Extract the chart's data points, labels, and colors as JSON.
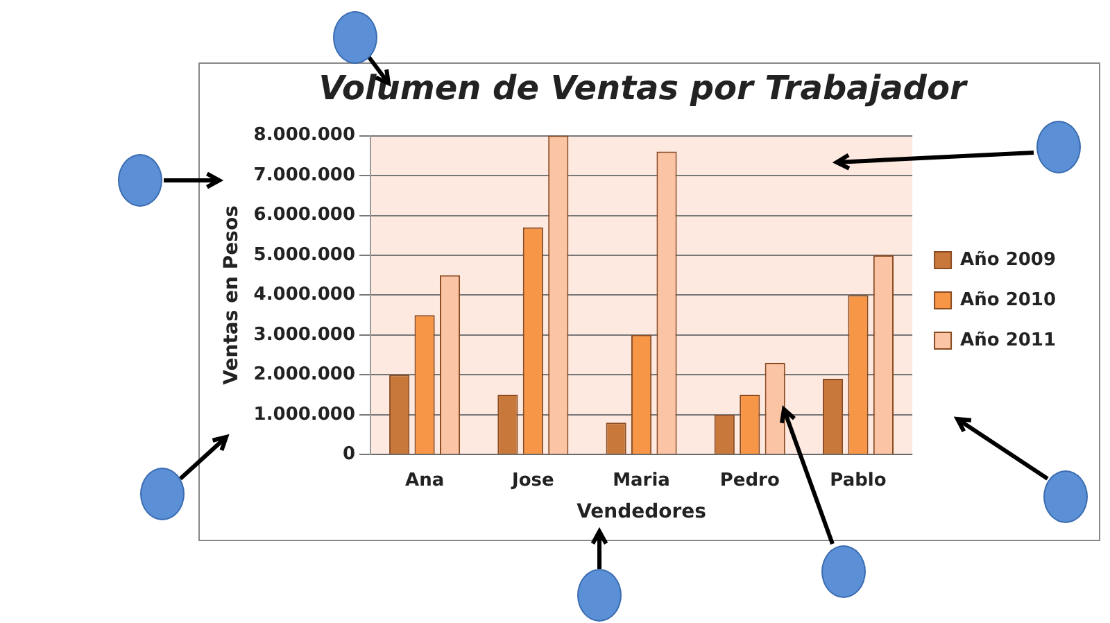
{
  "chart_data": {
    "type": "bar",
    "title": "Volumen de Ventas por Trabajador",
    "xlabel": "Vendedores",
    "ylabel": "Ventas en Pesos",
    "categories": [
      "Ana",
      "Jose",
      "Maria",
      "Pedro",
      "Pablo"
    ],
    "series": [
      {
        "name": "Año 2009",
        "color": "#c8783a",
        "values": [
          2000000,
          1500000,
          800000,
          1000000,
          1900000
        ]
      },
      {
        "name": "Año 2010",
        "color": "#f79646",
        "values": [
          3500000,
          5700000,
          3000000,
          1500000,
          4000000
        ]
      },
      {
        "name": "Año 2011",
        "color": "#fbc4a4",
        "values": [
          4500000,
          8000000,
          7600000,
          2300000,
          5000000
        ]
      }
    ],
    "ylim": [
      0,
      8000000
    ],
    "yticks": [
      0,
      {
        "value": 1000000,
        "label": "1.000.000"
      },
      {
        "value": 2000000,
        "label": "2.000.000"
      },
      {
        "value": 3000000,
        "label": "3.000.000"
      },
      {
        "value": 4000000,
        "label": "4.000.000"
      },
      {
        "value": 5000000,
        "label": "5.000.000"
      },
      {
        "value": 6000000,
        "label": "6.000.000"
      },
      {
        "value": 7000000,
        "label": "7.000.000"
      },
      {
        "value": 8000000,
        "label": "8.000.000"
      }
    ],
    "grid": "y",
    "legend": "right"
  }
}
